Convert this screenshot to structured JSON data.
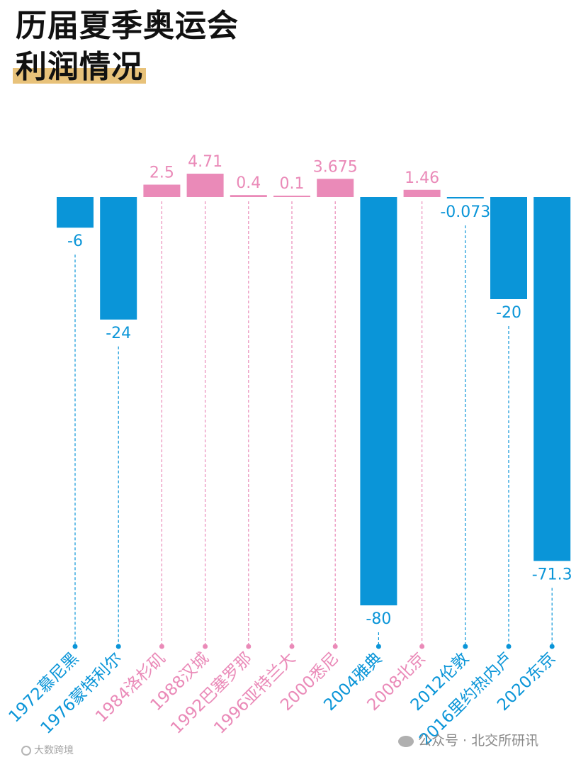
{
  "title": {
    "line1": "历届夏季奥运会",
    "line2": "利润情况"
  },
  "colors": {
    "positive": "#ea8ab8",
    "negative": "#0a95d8",
    "title_highlight": "#e8c27a"
  },
  "chart_data": {
    "type": "bar",
    "title": "历届夏季奥运会利润情况",
    "xlabel": "",
    "ylabel": "",
    "categories": [
      "1972慕尼黑",
      "1976蒙特利尔",
      "1984洛杉矶",
      "1988汉城",
      "1992巴塞罗那",
      "1996亚特兰大",
      "2000悉尼",
      "2004雅典",
      "2008北京",
      "2012伦敦",
      "2016里约热内卢",
      "2020东京"
    ],
    "values": [
      -6,
      -24,
      2.5,
      4.71,
      0.4,
      0.1,
      3.675,
      -80,
      1.46,
      -0.073,
      -20,
      -71.3
    ],
    "value_labels": [
      "-6",
      "-24",
      "2.5",
      "4.71",
      "0.4",
      "0.1",
      "3.675",
      "-80",
      "1.46",
      "-0.073",
      "-20",
      "-71.3"
    ],
    "ylim": [
      -80,
      4.71
    ],
    "grid": false,
    "legend": "none"
  },
  "watermarks": {
    "right": "公众号 · 北交所研讯",
    "left": "大数跨境"
  }
}
